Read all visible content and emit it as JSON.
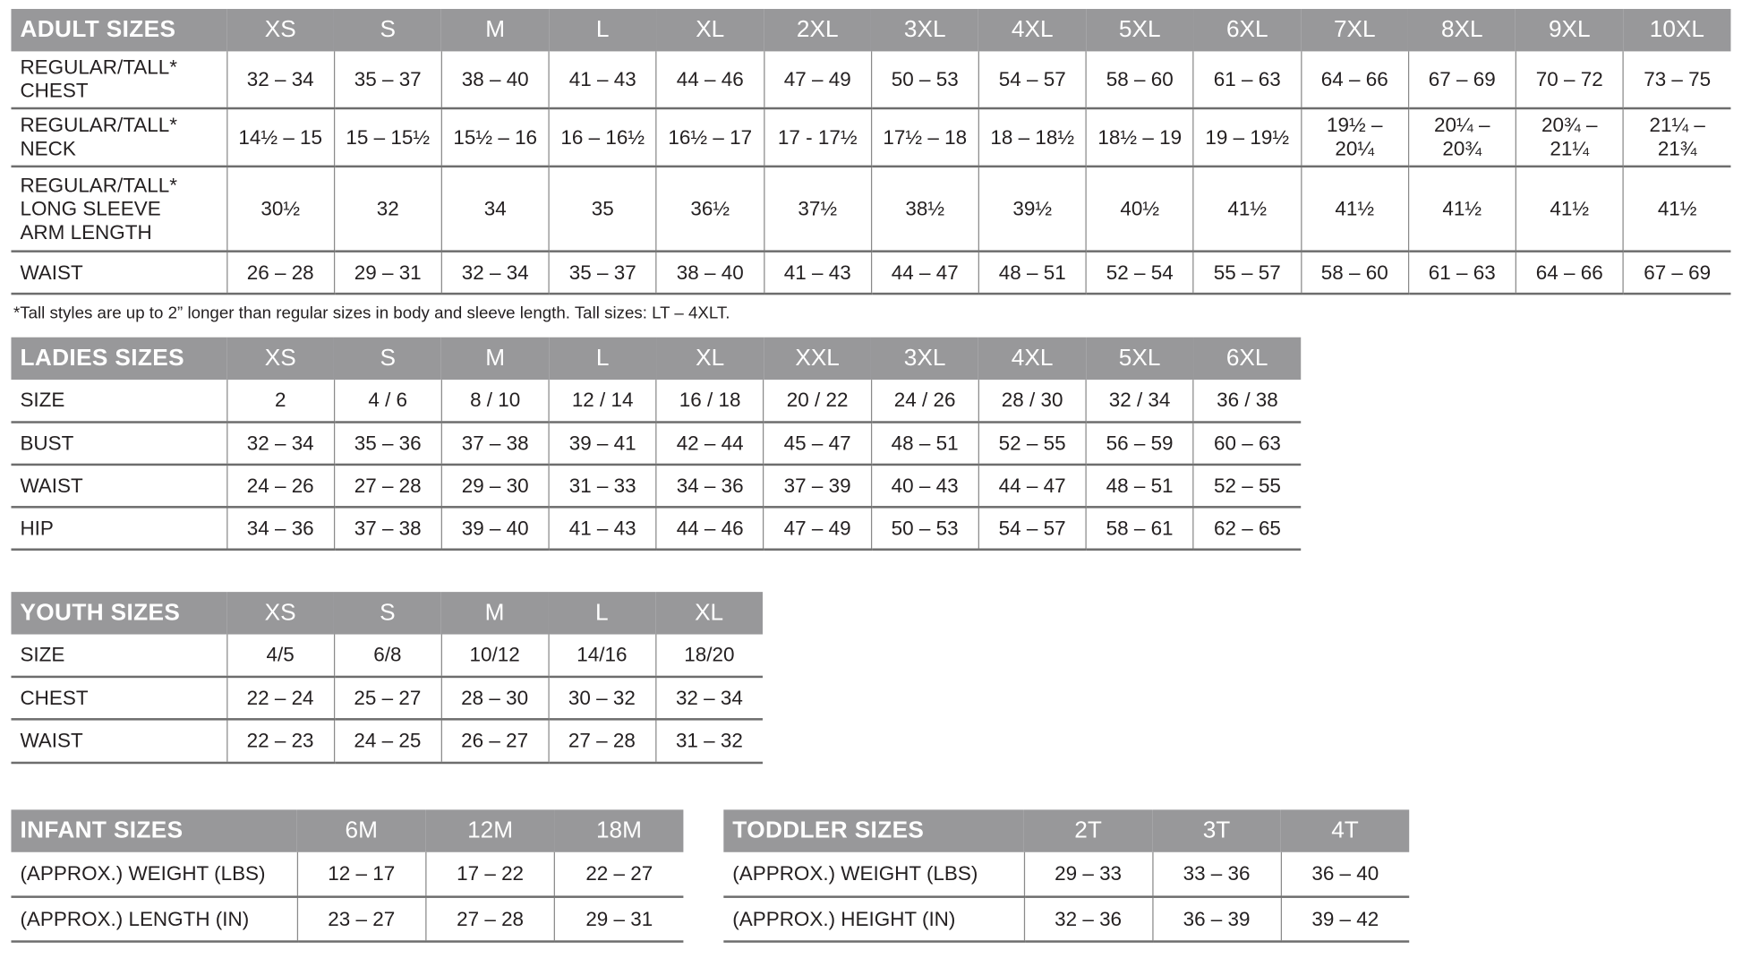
{
  "adult": {
    "title": "ADULT SIZES",
    "sizes": [
      "XS",
      "S",
      "M",
      "L",
      "XL",
      "2XL",
      "3XL",
      "4XL",
      "5XL",
      "6XL",
      "7XL",
      "8XL",
      "9XL",
      "10XL"
    ],
    "rows": [
      {
        "label": "REGULAR/TALL*\nCHEST",
        "values": [
          "32 – 34",
          "35 – 37",
          "38 – 40",
          "41 – 43",
          "44 – 46",
          "47 – 49",
          "50 – 53",
          "54 – 57",
          "58 – 60",
          "61 – 63",
          "64 – 66",
          "67 – 69",
          "70 – 72",
          "73 – 75"
        ]
      },
      {
        "label": "REGULAR/TALL*\nNECK",
        "values": [
          "14½ – 15",
          "15 – 15½",
          "15½ – 16",
          "16 – 16½",
          "16½ – 17",
          "17 - 17½",
          "17½ – 18",
          "18 – 18½",
          "18½ – 19",
          "19 – 19½",
          "19½ –\n20¼",
          "20¼ –\n20¾",
          "20¾ –\n21¼",
          "21¼ –\n21¾"
        ]
      },
      {
        "label": "REGULAR/TALL*\nLONG SLEEVE\nARM LENGTH",
        "values": [
          "30½",
          "32",
          "34",
          "35",
          "36½",
          "37½",
          "38½",
          "39½",
          "40½",
          "41½",
          "41½",
          "41½",
          "41½",
          "41½"
        ]
      },
      {
        "label": "WAIST",
        "values": [
          "26 – 28",
          "29 – 31",
          "32 – 34",
          "35 – 37",
          "38 – 40",
          "41 – 43",
          "44 – 47",
          "48 – 51",
          "52 – 54",
          "55 – 57",
          "58 – 60",
          "61 – 63",
          "64 – 66",
          "67 – 69"
        ]
      }
    ],
    "footnote": "*Tall styles are up to 2” longer than regular sizes in body and sleeve length. Tall sizes: LT – 4XLT."
  },
  "ladies": {
    "title": "LADIES SIZES",
    "sizes": [
      "XS",
      "S",
      "M",
      "L",
      "XL",
      "XXL",
      "3XL",
      "4XL",
      "5XL",
      "6XL"
    ],
    "rows": [
      {
        "label": "SIZE",
        "values": [
          "2",
          "4 / 6",
          "8 / 10",
          "12 / 14",
          "16 / 18",
          "20 / 22",
          "24 / 26",
          "28 / 30",
          "32 / 34",
          "36 / 38"
        ]
      },
      {
        "label": "BUST",
        "values": [
          "32 – 34",
          "35 – 36",
          "37 – 38",
          "39 – 41",
          "42 – 44",
          "45 – 47",
          "48 – 51",
          "52 – 55",
          "56 – 59",
          "60 – 63"
        ]
      },
      {
        "label": "WAIST",
        "values": [
          "24 – 26",
          "27 – 28",
          "29 – 30",
          "31 – 33",
          "34 – 36",
          "37 – 39",
          "40 – 43",
          "44 – 47",
          "48 – 51",
          "52 – 55"
        ]
      },
      {
        "label": "HIP",
        "values": [
          "34 – 36",
          "37 – 38",
          "39 – 40",
          "41 – 43",
          "44 – 46",
          "47 – 49",
          "50 – 53",
          "54 – 57",
          "58 – 61",
          "62 – 65"
        ]
      }
    ]
  },
  "youth": {
    "title": "YOUTH SIZES",
    "sizes": [
      "XS",
      "S",
      "M",
      "L",
      "XL"
    ],
    "rows": [
      {
        "label": "SIZE",
        "values": [
          "4/5",
          "6/8",
          "10/12",
          "14/16",
          "18/20"
        ]
      },
      {
        "label": "CHEST",
        "values": [
          "22 – 24",
          "25 – 27",
          "28 – 30",
          "30 – 32",
          "32 – 34"
        ]
      },
      {
        "label": "WAIST",
        "values": [
          "22 – 23",
          "24 – 25",
          "26 – 27",
          "27 – 28",
          "31 – 32"
        ]
      }
    ]
  },
  "infant": {
    "title": "INFANT SIZES",
    "sizes": [
      "6M",
      "12M",
      "18M"
    ],
    "rows": [
      {
        "label": "(APPROX.) WEIGHT (LBS)",
        "values": [
          "12 – 17",
          "17 – 22",
          "22 – 27"
        ]
      },
      {
        "label": "(APPROX.) LENGTH (IN)",
        "values": [
          "23 – 27",
          "27 – 28",
          "29 – 31"
        ]
      }
    ]
  },
  "toddler": {
    "title": "TODDLER SIZES",
    "sizes": [
      "2T",
      "3T",
      "4T"
    ],
    "rows": [
      {
        "label": "(APPROX.) WEIGHT (LBS)",
        "values": [
          "29 – 33",
          "33 – 36",
          "36 – 40"
        ]
      },
      {
        "label": "(APPROX.) HEIGHT (IN)",
        "values": [
          "32 – 36",
          "36 – 39",
          "39 – 42"
        ]
      }
    ]
  },
  "colors": {
    "header_bg": "#98989a",
    "header_text": "#ffffff",
    "text": "#231f20"
  }
}
